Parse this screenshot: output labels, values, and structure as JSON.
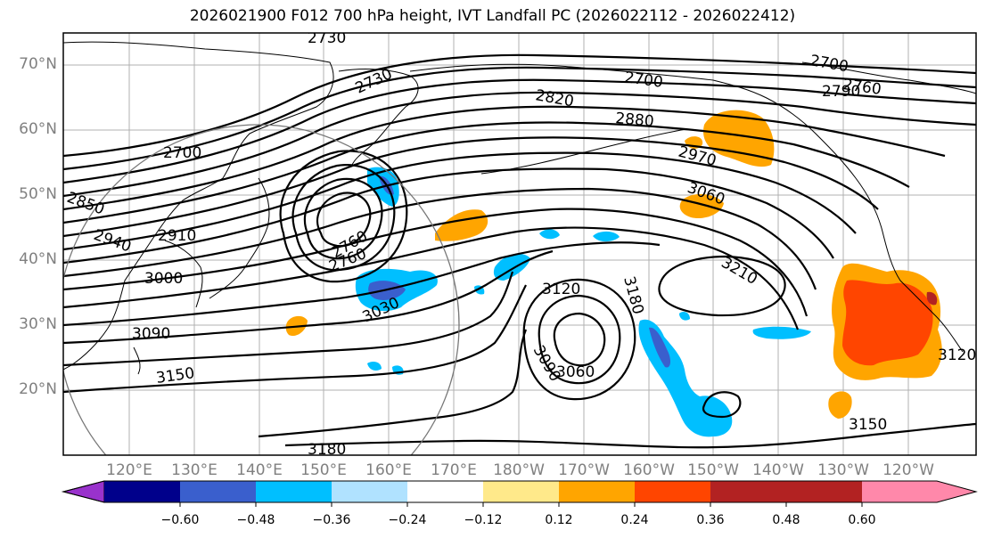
{
  "title": "2026021900 F012 700 hPa height, IVT Landfall PC (2026022112 - 2026022412)",
  "lat_labels": [
    "70°N",
    "60°N",
    "50°N",
    "40°N",
    "30°N",
    "20°N"
  ],
  "lon_labels": [
    "120°E",
    "130°E",
    "140°E",
    "150°E",
    "160°E",
    "170°E",
    "180°W",
    "170°W",
    "160°W",
    "150°W",
    "140°W",
    "130°W",
    "120°W"
  ],
  "contour_labels": [
    "2730",
    "2730",
    "2700",
    "2820",
    "2880",
    "2700",
    "2790",
    "2760",
    "2700",
    "2850",
    "2940",
    "2910",
    "3000",
    "3090",
    "3150",
    "3180",
    "2970",
    "3060",
    "3210",
    "3120",
    "3180",
    "3090",
    "3060",
    "2760",
    "2760",
    "3030",
    "3120",
    "3150"
  ],
  "colorbar": {
    "ticks": [
      "−0.60",
      "−0.48",
      "−0.36",
      "−0.24",
      "−0.12",
      "0.12",
      "0.24",
      "0.36",
      "0.48",
      "0.60"
    ],
    "colors": [
      "#9932cc",
      "#00008b",
      "#3a5fcd",
      "#00bfff",
      "#b0e2ff",
      "#ffffff",
      "#ffe98a",
      "#ffa500",
      "#ff4500",
      "#b22222",
      "#ff88aa"
    ]
  }
}
